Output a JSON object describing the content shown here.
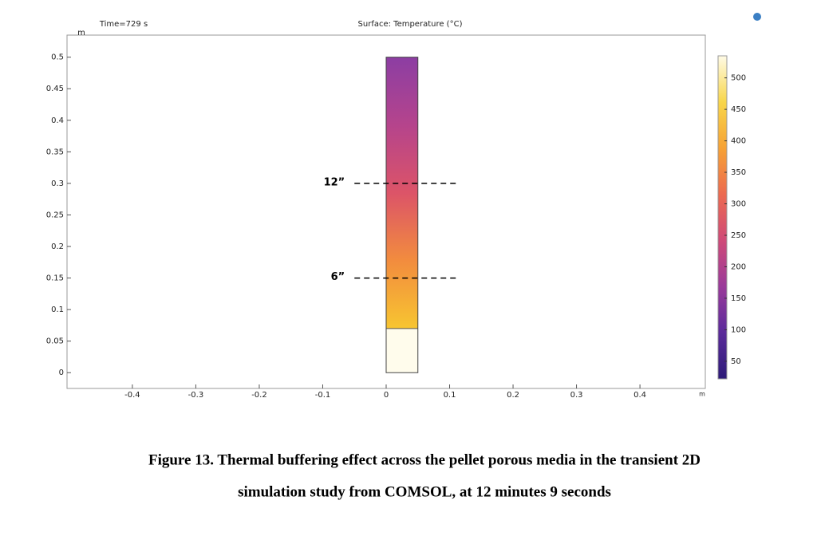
{
  "chart_data": {
    "type": "surface",
    "time_label": "Time=729 s",
    "title": "Surface: Temperature (°C)",
    "y_unit": "m",
    "x_unit": "m",
    "xlim": [
      -0.503,
      0.503
    ],
    "ylim": [
      -0.025,
      0.535
    ],
    "xticks": [
      -0.4,
      -0.3,
      -0.2,
      -0.1,
      0,
      0.1,
      0.2,
      0.3,
      0.4
    ],
    "yticks": [
      0,
      0.05,
      0.1,
      0.15,
      0.2,
      0.25,
      0.3,
      0.35,
      0.4,
      0.45,
      0.5
    ],
    "domain": {
      "x": [
        0,
        0.05
      ],
      "y": [
        0,
        0.5
      ]
    },
    "front_y": 0.07,
    "colormap": [
      "#f7c531",
      "#f28c3e",
      "#dc5468",
      "#b5448c",
      "#8c3ea3"
    ],
    "unheated_color": "#fffcec",
    "colorbar": {
      "lim": [
        22,
        535
      ],
      "ticks": [
        50,
        100,
        150,
        200,
        250,
        300,
        350,
        400,
        450,
        500
      ],
      "colors": [
        "#2d1b78",
        "#5a2a9a",
        "#9a3a9a",
        "#cf4a78",
        "#ec6a50",
        "#f6a235",
        "#f8d64a",
        "#fffbe6"
      ]
    },
    "annotations": [
      {
        "text": "12”",
        "y": 0.3,
        "x": [
          -0.05,
          0.11
        ]
      },
      {
        "text": "6”",
        "y": 0.15,
        "x": [
          -0.05,
          0.11
        ]
      }
    ]
  },
  "caption": [
    "Figure 13. Thermal buffering effect across the pellet porous media in the transient 2D",
    "simulation study from COMSOL, at 12 minutes 9 seconds"
  ]
}
